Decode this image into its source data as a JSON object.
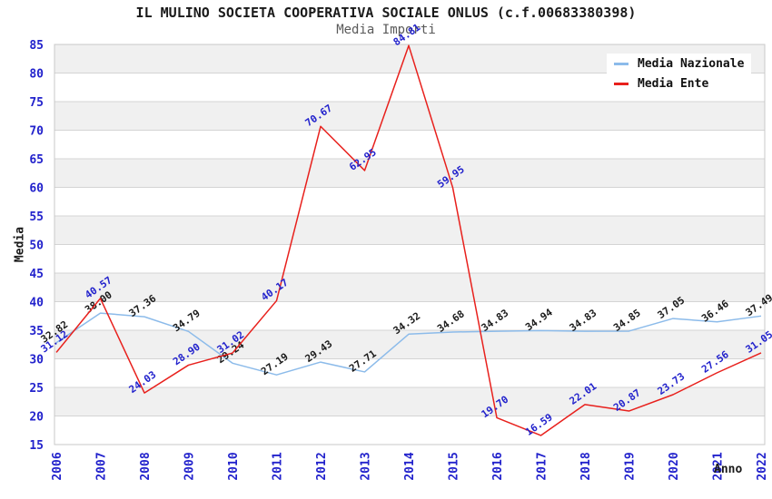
{
  "title": "IL MULINO SOCIETA COOPERATIVA SOCIALE ONLUS (c.f.00683380398)",
  "subtitle": "Media Importi",
  "legend": [
    {
      "label": "Media Nazionale",
      "color": "#8cbbea"
    },
    {
      "label": "Media Ente",
      "color": "#e8201c"
    }
  ],
  "chart_data": {
    "type": "line",
    "title": "IL MULINO SOCIETA COOPERATIVA SOCIALE ONLUS (c.f.00683380398)",
    "subtitle": "Media Importi",
    "xlabel": "Anno",
    "ylabel": "Media",
    "x": [
      2006,
      2007,
      2008,
      2009,
      2010,
      2011,
      2012,
      2013,
      2014,
      2015,
      2016,
      2017,
      2018,
      2019,
      2020,
      2021,
      2022
    ],
    "series": [
      {
        "name": "Media Nazionale",
        "color": "#8cbbea",
        "label_color": "#1a1a1a",
        "values": [
          32.82,
          38.0,
          37.36,
          34.79,
          29.24,
          27.19,
          29.43,
          27.71,
          34.32,
          34.68,
          34.83,
          34.94,
          34.83,
          34.85,
          37.05,
          36.46,
          37.49
        ]
      },
      {
        "name": "Media Ente",
        "color": "#e8201c",
        "label_color": "#2222cc",
        "values": [
          31.12,
          40.57,
          24.03,
          28.9,
          31.02,
          40.17,
          70.67,
          62.95,
          84.81,
          59.95,
          19.7,
          16.59,
          22.01,
          20.87,
          23.73,
          27.56,
          31.05
        ]
      }
    ],
    "ylim": [
      15,
      85
    ],
    "ytick_step": 5,
    "grid": "horizontal",
    "legend_position": "top-right",
    "band_color": "#f0f0f0",
    "gridline_color": "#d4d4d4",
    "border_color": "#c8c8c8",
    "tick_color": "#2222cc"
  }
}
